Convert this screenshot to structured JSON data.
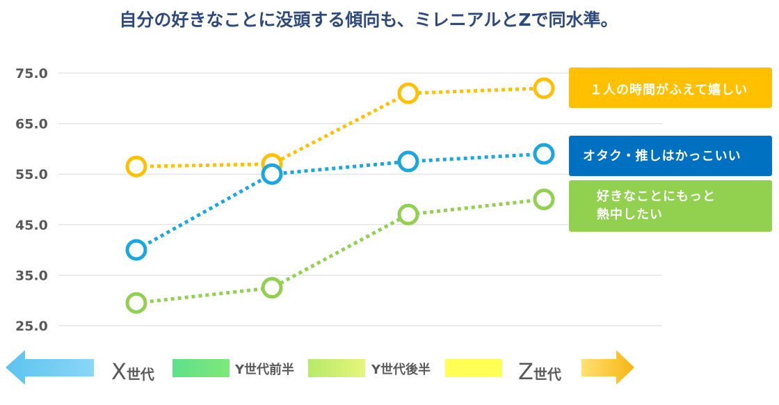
{
  "title": "自分の好きなことに没頭する傾向も、ミレニアルとZで同水準。",
  "colors": {
    "title": "#2E4A7D",
    "grid": "#d9d9d9",
    "gen_green": "#5fe08a",
    "gen_lightgreen": "#ccee6b",
    "gen_yellow": "#ffff55",
    "arrow_left": "#5cc4ef",
    "arrow_right": "#f7b613"
  },
  "chart_data": {
    "type": "line",
    "title": "自分の好きなことに没頭する傾向も、ミレニアルとZで同水準。",
    "categories": [
      "X世代",
      "Y世代前半",
      "Y世代後半",
      "Z世代"
    ],
    "ylim": [
      25,
      75
    ],
    "yticks": [
      "75.0",
      "65.0",
      "55.0",
      "45.0",
      "35.0",
      "25.0"
    ],
    "grid": true,
    "legend_placement": "right",
    "series": [
      {
        "name": "１人の時間がふえて嬉しい",
        "color": "#FFC000",
        "values": [
          56.5,
          57,
          71,
          72
        ]
      },
      {
        "name": "オタク・推しはかっこいい",
        "color": "#1AA7E0",
        "values": [
          40,
          55,
          57.5,
          59
        ]
      },
      {
        "name": "好きなことにもっと熱中したい",
        "color": "#92D050",
        "values": [
          29.5,
          32.5,
          47,
          50
        ]
      }
    ]
  },
  "legend": [
    {
      "lines": [
        "１人の時間がふえて嬉しい"
      ],
      "bg": "#FFC000"
    },
    {
      "lines": [
        "オタク・推しはかっこいい"
      ],
      "bg": "#0070C0"
    },
    {
      "lines": [
        "好きなことにもっと",
        "熱中したい"
      ],
      "bg": "#92D050"
    }
  ],
  "generations": {
    "x": {
      "prefix": "X",
      "suffix": "世代"
    },
    "y1": "Y世代前半",
    "y2": "Y世代後半",
    "z": {
      "prefix": "Z",
      "suffix": "世代"
    }
  }
}
